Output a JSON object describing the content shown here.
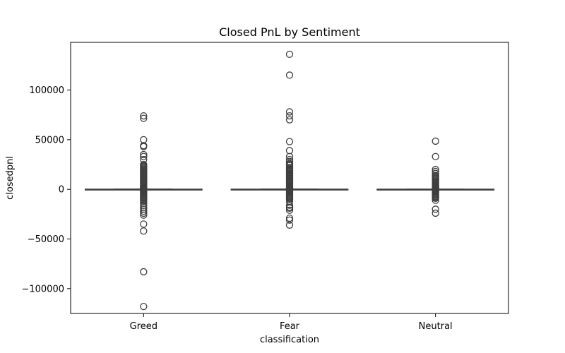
{
  "chart_data": {
    "type": "box",
    "title": "Closed PnL by Sentiment",
    "xlabel": "classification",
    "ylabel": "closedpnl",
    "ylim": [
      -125000,
      148000
    ],
    "yticks": [
      {
        "value": 100000,
        "label": "100000"
      },
      {
        "value": 50000,
        "label": "50000"
      },
      {
        "value": 0,
        "label": "0"
      },
      {
        "value": -50000,
        "label": "−50000"
      },
      {
        "value": -100000,
        "label": "−100000"
      }
    ],
    "categories": [
      "Greed",
      "Fear",
      "Neutral"
    ],
    "boxes": [
      {
        "category": "Greed",
        "q1": -20,
        "median": 0,
        "q3": 80,
        "whisker_low": -150,
        "whisker_high": 200,
        "outliers": [
          74000,
          71500,
          50000,
          44000,
          43000,
          35000,
          33000,
          30000,
          25000,
          24000,
          23000,
          22000,
          21000,
          20000,
          19000,
          18000,
          17000,
          16000,
          15000,
          14000,
          13000,
          12000,
          11000,
          10000,
          9000,
          8000,
          7000,
          6000,
          5000,
          4000,
          3000,
          2500,
          2000,
          1500,
          1000,
          500,
          300,
          -300,
          -500,
          -1000,
          -1500,
          -2000,
          -3000,
          -4000,
          -5000,
          -6000,
          -7000,
          -8000,
          -9000,
          -10000,
          -11000,
          -12000,
          -14000,
          -16000,
          -18000,
          -20000,
          -22000,
          -24000,
          -26000,
          -35000,
          -42000,
          -83000,
          -118000
        ]
      },
      {
        "category": "Fear",
        "q1": -30,
        "median": 0,
        "q3": 100,
        "whisker_low": -170,
        "whisker_high": 240,
        "outliers": [
          136000,
          115000,
          78000,
          74000,
          70000,
          48000,
          39000,
          33000,
          30000,
          28000,
          26000,
          25000,
          24000,
          22000,
          21000,
          20000,
          19000,
          18000,
          17000,
          16000,
          15000,
          14000,
          13000,
          12000,
          11000,
          10000,
          9000,
          8000,
          7000,
          6000,
          5000,
          4000,
          3000,
          2500,
          2000,
          1500,
          1000,
          500,
          300,
          -300,
          -500,
          -1000,
          -1500,
          -2000,
          -3000,
          -4000,
          -5000,
          -6000,
          -7000,
          -8000,
          -9000,
          -10000,
          -12000,
          -16000,
          -18000,
          -19000,
          -21000,
          -29000,
          -31000,
          -36000
        ]
      },
      {
        "category": "Neutral",
        "q1": -15,
        "median": 0,
        "q3": 60,
        "whisker_low": -110,
        "whisker_high": 160,
        "outliers": [
          48500,
          33000,
          20000,
          18000,
          16000,
          14000,
          13000,
          12000,
          11000,
          10000,
          9000,
          8000,
          7000,
          6000,
          5000,
          4000,
          3000,
          2500,
          2000,
          1500,
          1000,
          500,
          300,
          -300,
          -500,
          -1000,
          -1500,
          -2000,
          -3000,
          -4000,
          -5000,
          -6000,
          -7000,
          -8000,
          -9000,
          -11000,
          -20000,
          -24000
        ]
      }
    ]
  }
}
